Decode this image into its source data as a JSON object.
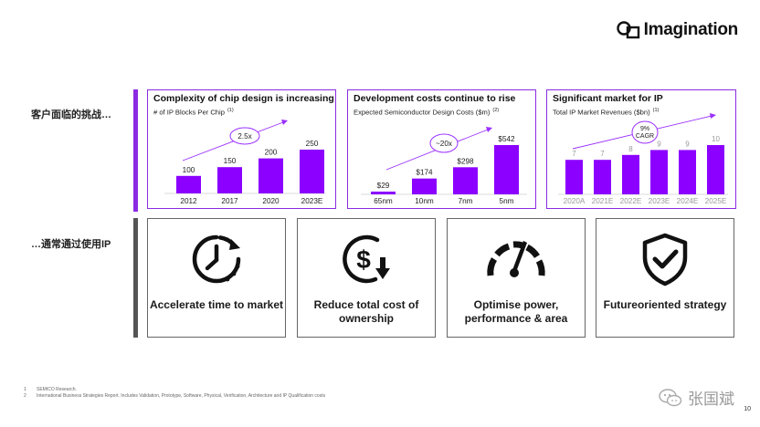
{
  "logo": {
    "text": "Imagination"
  },
  "colors": {
    "accent": "#8b2be2",
    "bar": "#8b00ff",
    "box_border": "#666666",
    "row2_bar": "#555555"
  },
  "rows": {
    "challenges_label": "客户面临的挑战…",
    "solutions_label": "…通常通过使用IP"
  },
  "panels": [
    {
      "title": "Complexity of chip design is increasing",
      "subtitle": "# of IP Blocks Per Chip",
      "footnote_ref": "(1)",
      "badge": "2.5x"
    },
    {
      "title": "Development costs continue to rise",
      "subtitle": "Expected Semiconductor Design Costs ($m)",
      "footnote_ref": "(2)",
      "badge": "~20x"
    },
    {
      "title": "Significant market for IP",
      "subtitle": "Total IP Market Revenues ($bn)",
      "footnote_ref": "(1)",
      "badge_line1": "9%",
      "badge_line2": "CAGR"
    }
  ],
  "chart_data": [
    {
      "type": "bar",
      "title": "Complexity of chip design is increasing",
      "categories": [
        "2012",
        "2017",
        "2020",
        "2023E"
      ],
      "values": [
        100,
        150,
        200,
        250
      ],
      "value_labels": [
        "100",
        "150",
        "200",
        "250"
      ],
      "ylim": [
        0,
        250
      ]
    },
    {
      "type": "bar",
      "title": "Development costs continue to rise",
      "categories": [
        "65nm",
        "10nm",
        "7nm",
        "5nm"
      ],
      "values": [
        29,
        174,
        298,
        542
      ],
      "value_labels": [
        "$29",
        "$174",
        "$298",
        "$542"
      ],
      "ylim": [
        0,
        542
      ]
    },
    {
      "type": "bar",
      "title": "Significant market for IP",
      "categories": [
        "2020A",
        "2021E",
        "2022E",
        "2023E",
        "2024E",
        "2025E"
      ],
      "values": [
        7,
        7,
        8,
        9,
        9,
        10
      ],
      "value_labels": [
        "7",
        "7",
        "8",
        "9",
        "9",
        "10"
      ],
      "ylim": [
        0,
        10
      ]
    }
  ],
  "solutions": [
    {
      "icon": "clock-icon",
      "label": "Accelerate time to market"
    },
    {
      "icon": "dollar-down-icon",
      "label": "Reduce total cost of\nownership"
    },
    {
      "icon": "gauge-icon",
      "label": "Optimise power,\nperformance & area"
    },
    {
      "icon": "shield-check-icon",
      "label": "Futureoriented strategy"
    }
  ],
  "footnotes": [
    {
      "num": "1",
      "text": "SEMICO Research."
    },
    {
      "num": "2",
      "text": "International Business Strategies Report. Includes Validation, Prototype, Software, Physical, Verification, Architecture and  IP Qualification costs"
    }
  ],
  "watermark": {
    "text": "张国斌"
  },
  "page_number": "10"
}
